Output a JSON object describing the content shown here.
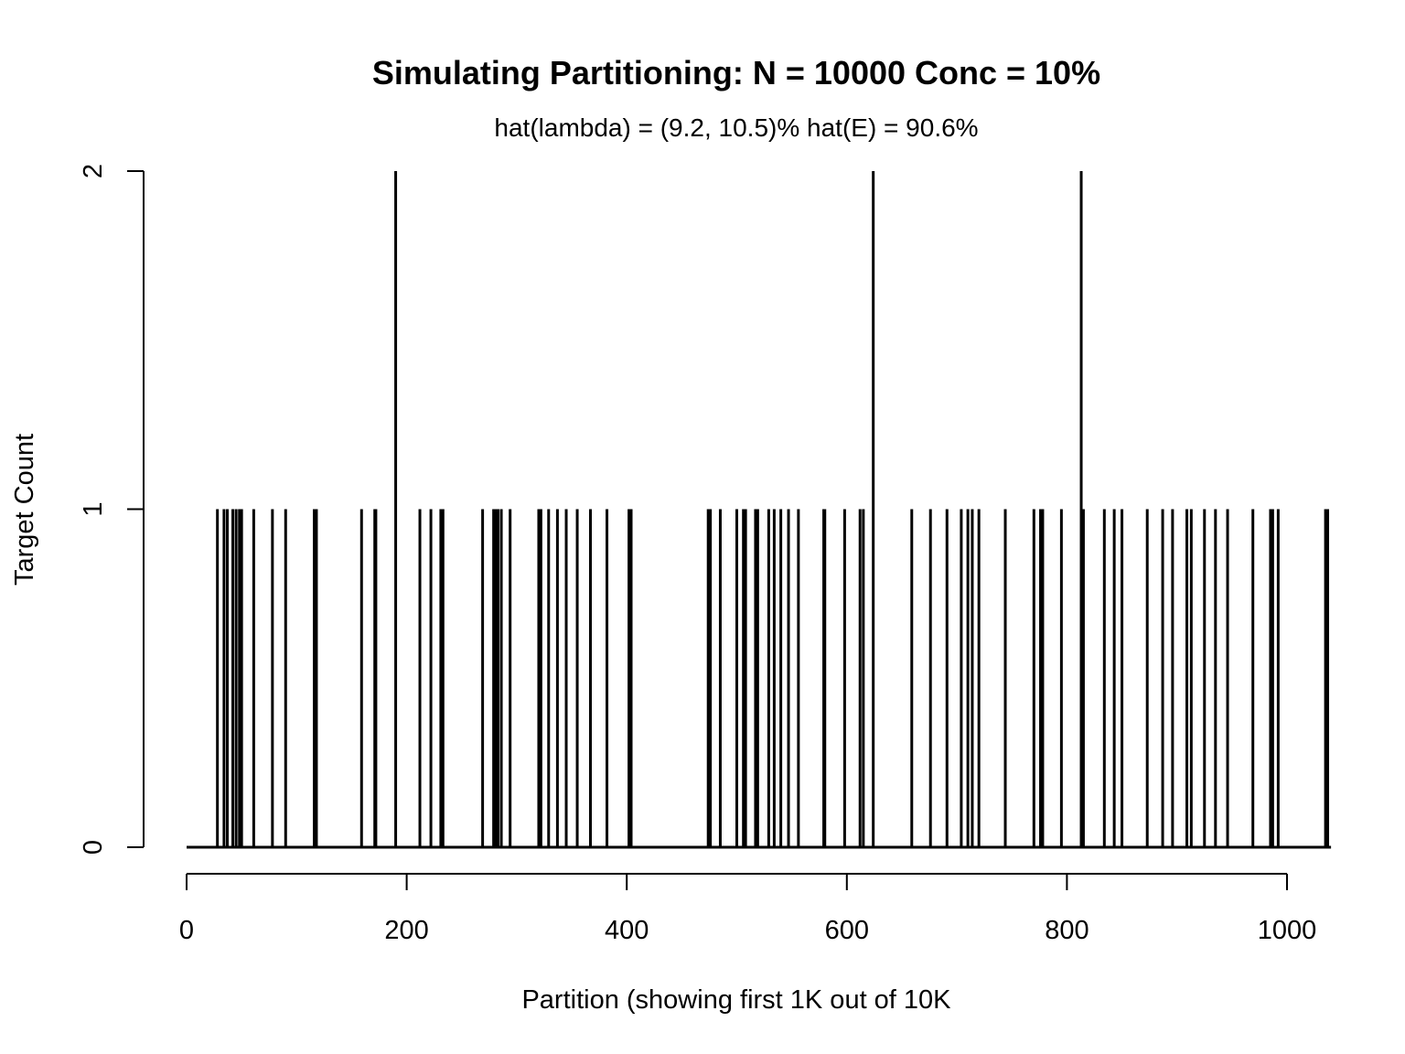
{
  "chart_data": {
    "type": "histogram-spike",
    "title": "Simulating Partitioning: N = 10000 Conc = 10%",
    "subtitle": "hat(lambda) = (9.2, 10.5)%  hat(E) = 90.6%",
    "xlabel": "Partition (showing first 1K out of 10K",
    "ylabel": "Target Count",
    "x_ticks": [
      0,
      200,
      400,
      600,
      800,
      1000
    ],
    "y_ticks": [
      0,
      1,
      2
    ],
    "xlim": [
      0,
      1040
    ],
    "ylim": [
      0,
      2
    ],
    "grid": false,
    "baseline_range": [
      0,
      1040
    ],
    "series": [
      {
        "x": [
          28,
          34,
          37,
          42,
          45,
          48,
          50,
          61,
          78,
          90,
          116,
          118,
          159,
          171,
          172,
          190,
          212,
          222,
          231,
          233,
          269,
          279,
          281,
          283,
          286,
          294,
          320,
          322,
          329,
          337,
          345,
          355,
          367,
          382,
          402,
          404,
          474,
          476,
          485,
          500,
          506,
          508,
          517,
          519,
          529,
          534,
          540,
          547,
          556,
          579,
          580,
          598,
          612,
          615,
          624,
          659,
          676,
          691,
          704,
          710,
          714,
          720,
          744,
          770,
          776,
          778,
          795,
          813,
          815,
          834,
          843,
          850,
          873,
          887,
          896,
          909,
          913,
          925,
          935,
          946,
          969,
          985,
          987,
          992,
          1035,
          1037
        ],
        "y": [
          1,
          1,
          1,
          1,
          1,
          1,
          1,
          1,
          1,
          1,
          1,
          1,
          1,
          1,
          1,
          2,
          1,
          1,
          1,
          1,
          1,
          1,
          1,
          1,
          1,
          1,
          1,
          1,
          1,
          1,
          1,
          1,
          1,
          1,
          1,
          1,
          1,
          1,
          1,
          1,
          1,
          1,
          1,
          1,
          1,
          1,
          1,
          1,
          1,
          1,
          1,
          1,
          1,
          1,
          2,
          1,
          1,
          1,
          1,
          1,
          1,
          1,
          1,
          1,
          1,
          1,
          1,
          2,
          1,
          1,
          1,
          1,
          1,
          1,
          1,
          1,
          1,
          1,
          1,
          1,
          1,
          1,
          1,
          1,
          1,
          1
        ]
      }
    ]
  }
}
